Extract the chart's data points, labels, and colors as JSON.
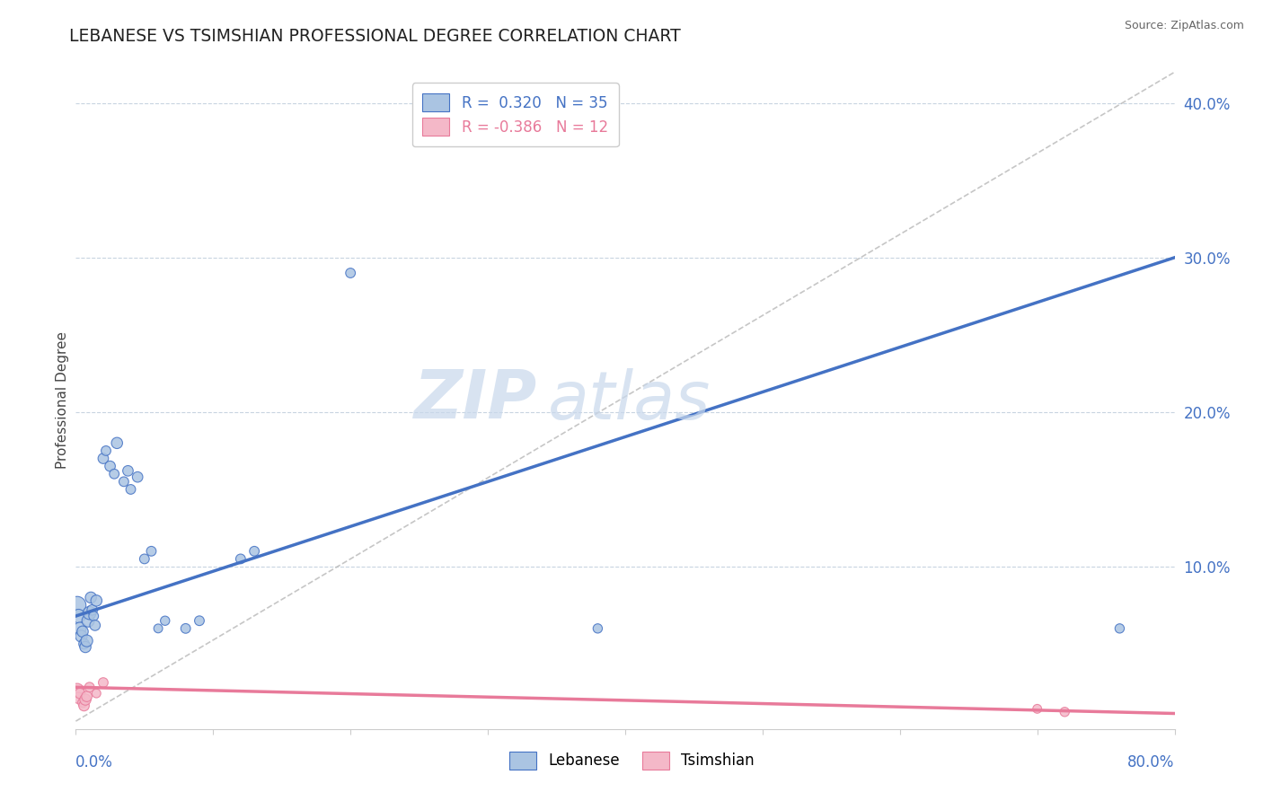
{
  "title": "LEBANESE VS TSIMSHIAN PROFESSIONAL DEGREE CORRELATION CHART",
  "source": "Source: ZipAtlas.com",
  "ylabel": "Professional Degree",
  "ylabel_right_values": [
    0.1,
    0.2,
    0.3,
    0.4
  ],
  "watermark_zip": "ZIP",
  "watermark_atlas": "atlas",
  "legend_r1": "R =  0.320",
  "legend_n1": "N = 35",
  "legend_r2": "R = -0.386",
  "legend_n2": "N = 12",
  "blue_color": "#aac4e2",
  "blue_line_color": "#4472c4",
  "pink_color": "#f4b8c8",
  "pink_line_color": "#e87a9a",
  "dashed_line_color": "#b8b8b8",
  "background_color": "#ffffff",
  "grid_color": "#c8d4e0",
  "xlim": [
    0.0,
    0.8
  ],
  "ylim": [
    -0.005,
    0.42
  ],
  "blue_scatter_x": [
    0.001,
    0.002,
    0.003,
    0.004,
    0.005,
    0.006,
    0.007,
    0.008,
    0.009,
    0.01,
    0.011,
    0.012,
    0.013,
    0.014,
    0.015,
    0.02,
    0.022,
    0.025,
    0.028,
    0.03,
    0.035,
    0.038,
    0.04,
    0.045,
    0.05,
    0.055,
    0.06,
    0.065,
    0.08,
    0.09,
    0.12,
    0.13,
    0.2,
    0.38,
    0.76
  ],
  "blue_scatter_y": [
    0.075,
    0.068,
    0.06,
    0.055,
    0.058,
    0.05,
    0.048,
    0.052,
    0.065,
    0.07,
    0.08,
    0.072,
    0.068,
    0.062,
    0.078,
    0.17,
    0.175,
    0.165,
    0.16,
    0.18,
    0.155,
    0.162,
    0.15,
    0.158,
    0.105,
    0.11,
    0.06,
    0.065,
    0.06,
    0.065,
    0.105,
    0.11,
    0.29,
    0.06,
    0.06
  ],
  "blue_scatter_size": [
    200,
    120,
    100,
    90,
    80,
    70,
    80,
    90,
    100,
    110,
    80,
    70,
    60,
    70,
    80,
    70,
    60,
    70,
    60,
    80,
    60,
    70,
    60,
    70,
    60,
    60,
    50,
    55,
    60,
    60,
    60,
    60,
    60,
    55,
    55
  ],
  "pink_scatter_x": [
    0.001,
    0.002,
    0.003,
    0.005,
    0.006,
    0.007,
    0.008,
    0.01,
    0.015,
    0.02,
    0.7,
    0.72
  ],
  "pink_scatter_y": [
    0.02,
    0.015,
    0.018,
    0.012,
    0.01,
    0.014,
    0.016,
    0.022,
    0.018,
    0.025,
    0.008,
    0.006
  ],
  "pink_scatter_size": [
    120,
    80,
    70,
    60,
    70,
    80,
    70,
    60,
    50,
    60,
    50,
    55
  ],
  "blue_line_x0": 0.0,
  "blue_line_y0": 0.068,
  "blue_line_x1": 0.8,
  "blue_line_y1": 0.3,
  "pink_line_x0": 0.0,
  "pink_line_y0": 0.022,
  "pink_line_x1": 0.8,
  "pink_line_y1": 0.005
}
